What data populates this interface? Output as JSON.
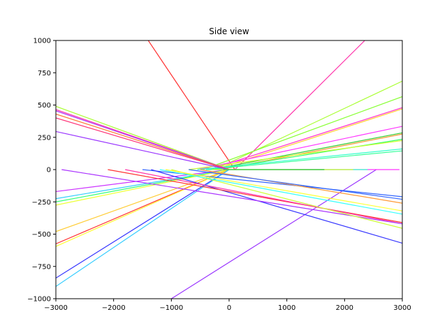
{
  "chart_data": {
    "type": "line",
    "title": "Side view",
    "xlabel": "",
    "ylabel": "",
    "xlim": [
      -3000,
      3000
    ],
    "ylim": [
      -1000,
      1000
    ],
    "xticks": [
      -3000,
      -2000,
      -1000,
      0,
      1000,
      2000,
      3000
    ],
    "yticks": [
      -1000,
      -750,
      -500,
      -250,
      0,
      250,
      500,
      750,
      1000
    ],
    "xtick_labels": [
      "−3000",
      "−2000",
      "−1000",
      "0",
      "1000",
      "2000",
      "3000"
    ],
    "ytick_labels": [
      "−1000",
      "−750",
      "−500",
      "−250",
      "0",
      "250",
      "500",
      "750",
      "1000"
    ],
    "grid": false,
    "legend": "none",
    "series": [
      {
        "color": "#ff3333",
        "x": [
          -1400,
          100
        ],
        "y": [
          1000,
          0
        ]
      },
      {
        "color": "#ff33aa",
        "x": [
          2350,
          100
        ],
        "y": [
          1000,
          0
        ]
      },
      {
        "color": "#aaff33",
        "x": [
          3000,
          -250
        ],
        "y": [
          685,
          0
        ]
      },
      {
        "color": "#88ff33",
        "x": [
          3000,
          -450
        ],
        "y": [
          565,
          0
        ]
      },
      {
        "color": "#ff33cc",
        "x": [
          3000,
          -350
        ],
        "y": [
          480,
          0
        ]
      },
      {
        "color": "#ffcc33",
        "x": [
          3000,
          -250
        ],
        "y": [
          470,
          0
        ]
      },
      {
        "color": "#ff33ff",
        "x": [
          3000,
          -550
        ],
        "y": [
          335,
          0
        ]
      },
      {
        "color": "#33cc33",
        "x": [
          3000,
          -300
        ],
        "y": [
          285,
          0
        ]
      },
      {
        "color": "#ff9933",
        "x": [
          3000,
          -150
        ],
        "y": [
          275,
          0
        ]
      },
      {
        "color": "#33ff66",
        "x": [
          3000,
          -250
        ],
        "y": [
          235,
          0
        ]
      },
      {
        "color": "#ccff33",
        "x": [
          3000,
          -700
        ],
        "y": [
          225,
          0
        ]
      },
      {
        "color": "#33ffcc",
        "x": [
          3000,
          -550
        ],
        "y": [
          160,
          0
        ]
      },
      {
        "color": "#33ff99",
        "x": [
          3000,
          -400
        ],
        "y": [
          145,
          0
        ]
      },
      {
        "color": "#aaff33",
        "x": [
          -3000,
          0
        ],
        "y": [
          490,
          0
        ]
      },
      {
        "color": "#ff33aa",
        "x": [
          -3000,
          0
        ],
        "y": [
          465,
          0
        ]
      },
      {
        "color": "#aa33ff",
        "x": [
          -3000,
          0
        ],
        "y": [
          455,
          0
        ]
      },
      {
        "color": "#ff7733",
        "x": [
          -3000,
          0
        ],
        "y": [
          430,
          0
        ]
      },
      {
        "color": "#ff3377",
        "x": [
          -3000,
          0
        ],
        "y": [
          400,
          0
        ]
      },
      {
        "color": "#9933ff",
        "x": [
          -3000,
          0
        ],
        "y": [
          295,
          0
        ]
      },
      {
        "color": "#cc33ff",
        "x": [
          -3000,
          0
        ],
        "y": [
          -170,
          0
        ]
      },
      {
        "color": "#33ccff",
        "x": [
          -3000,
          0
        ],
        "y": [
          -225,
          0
        ]
      },
      {
        "color": "#33ff77",
        "x": [
          -3000,
          0
        ],
        "y": [
          -250,
          0
        ]
      },
      {
        "color": "#eeff33",
        "x": [
          -3000,
          0
        ],
        "y": [
          -275,
          0
        ]
      },
      {
        "color": "#ffcc33",
        "x": [
          -3000,
          0
        ],
        "y": [
          -480,
          0
        ]
      },
      {
        "color": "#ff3333",
        "x": [
          -3000,
          0
        ],
        "y": [
          -575,
          0
        ]
      },
      {
        "color": "#ffff33",
        "x": [
          -3000,
          0
        ],
        "y": [
          -595,
          0
        ]
      },
      {
        "color": "#3333ff",
        "x": [
          -3000,
          0
        ],
        "y": [
          -840,
          0
        ]
      },
      {
        "color": "#33ccff",
        "x": [
          -3000,
          0
        ],
        "y": [
          -905,
          0
        ]
      },
      {
        "color": "#9933ff",
        "x": [
          -1000,
          2550
        ],
        "y": [
          -1000,
          0
        ]
      },
      {
        "color": "#3366ff",
        "x": [
          -1500,
          3000
        ],
        "y": [
          0,
          -210
        ]
      },
      {
        "color": "#ff33ff",
        "x": [
          -200,
          2950
        ],
        "y": [
          0,
          0
        ]
      },
      {
        "color": "#33ffcc",
        "x": [
          -400,
          2400
        ],
        "y": [
          0,
          0
        ]
      },
      {
        "color": "#ccff33",
        "x": [
          -300,
          2150
        ],
        "y": [
          0,
          0
        ]
      },
      {
        "color": "#33cc33",
        "x": [
          -100,
          1650
        ],
        "y": [
          0,
          0
        ]
      },
      {
        "color": "#3333ff",
        "x": [
          -1350,
          3000
        ],
        "y": [
          0,
          -570
        ]
      },
      {
        "color": "#ff3333",
        "x": [
          -2100,
          3000
        ],
        "y": [
          0,
          -410
        ]
      },
      {
        "color": "#ff33aa",
        "x": [
          -1800,
          3000
        ],
        "y": [
          0,
          -420
        ]
      },
      {
        "color": "#aa33ff",
        "x": [
          -2900,
          3000
        ],
        "y": [
          0,
          -420
        ]
      },
      {
        "color": "#ccff33",
        "x": [
          -1000,
          3000
        ],
        "y": [
          0,
          -455
        ]
      },
      {
        "color": "#33ffff",
        "x": [
          -1200,
          3000
        ],
        "y": [
          0,
          -345
        ]
      },
      {
        "color": "#ff9933",
        "x": [
          -500,
          3000
        ],
        "y": [
          0,
          -260
        ]
      },
      {
        "color": "#ffff33",
        "x": [
          -1100,
          3000
        ],
        "y": [
          0,
          -320
        ]
      },
      {
        "color": "#3366ff",
        "x": [
          -700,
          3000
        ],
        "y": [
          0,
          -230
        ]
      }
    ]
  }
}
